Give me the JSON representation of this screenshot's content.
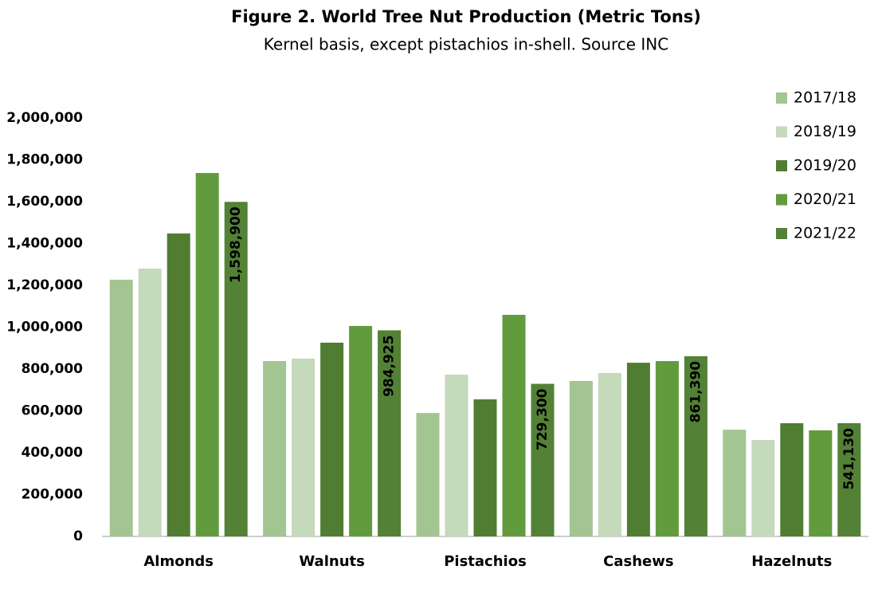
{
  "chart_data": {
    "type": "bar",
    "title": "Figure 2. World Tree Nut Production (Metric Tons)",
    "subtitle": "Kernel basis, except pistachios in-shell. Source INC",
    "categories": [
      "Almonds",
      "Walnuts",
      "Pistachios",
      "Cashews",
      "Hazelnuts"
    ],
    "series": [
      {
        "name": "2017/18",
        "color": "#a3c592",
        "values": [
          1227000,
          838000,
          590000,
          743000,
          510000
        ]
      },
      {
        "name": "2018/19",
        "color": "#c5d9bb",
        "values": [
          1280000,
          850000,
          773000,
          781000,
          461000
        ]
      },
      {
        "name": "2019/20",
        "color": "#507d32",
        "values": [
          1448000,
          926000,
          655000,
          830000,
          541000
        ]
      },
      {
        "name": "2020/21",
        "color": "#629b3e",
        "values": [
          1737000,
          1006000,
          1059000,
          838000,
          507000
        ]
      },
      {
        "name": "2021/22",
        "color": "#538135",
        "values": [
          1598900,
          984925,
          729300,
          861390,
          541130
        ],
        "value_labels": [
          "1,598,900",
          "984,925",
          "729,300",
          "861,390",
          "541,130"
        ]
      }
    ],
    "ylim": [
      0,
      2000000
    ],
    "yticks": [
      0,
      {
        "value": 200000,
        "label": "200,000"
      },
      {
        "value": 400000,
        "label": "400,000"
      },
      {
        "value": 600000,
        "label": "600,000"
      },
      {
        "value": 800000,
        "label": "800,000"
      },
      {
        "value": 1000000,
        "label": "1,000,000"
      },
      {
        "value": 1200000,
        "label": "1,200,000"
      },
      {
        "value": 1400000,
        "label": "1,400,000"
      },
      {
        "value": 1600000,
        "label": "1,600,000"
      },
      {
        "value": 1800000,
        "label": "1,800,000"
      },
      {
        "value": 2000000,
        "label": "2,000,000"
      }
    ],
    "grid": false,
    "legend": "top-right"
  }
}
